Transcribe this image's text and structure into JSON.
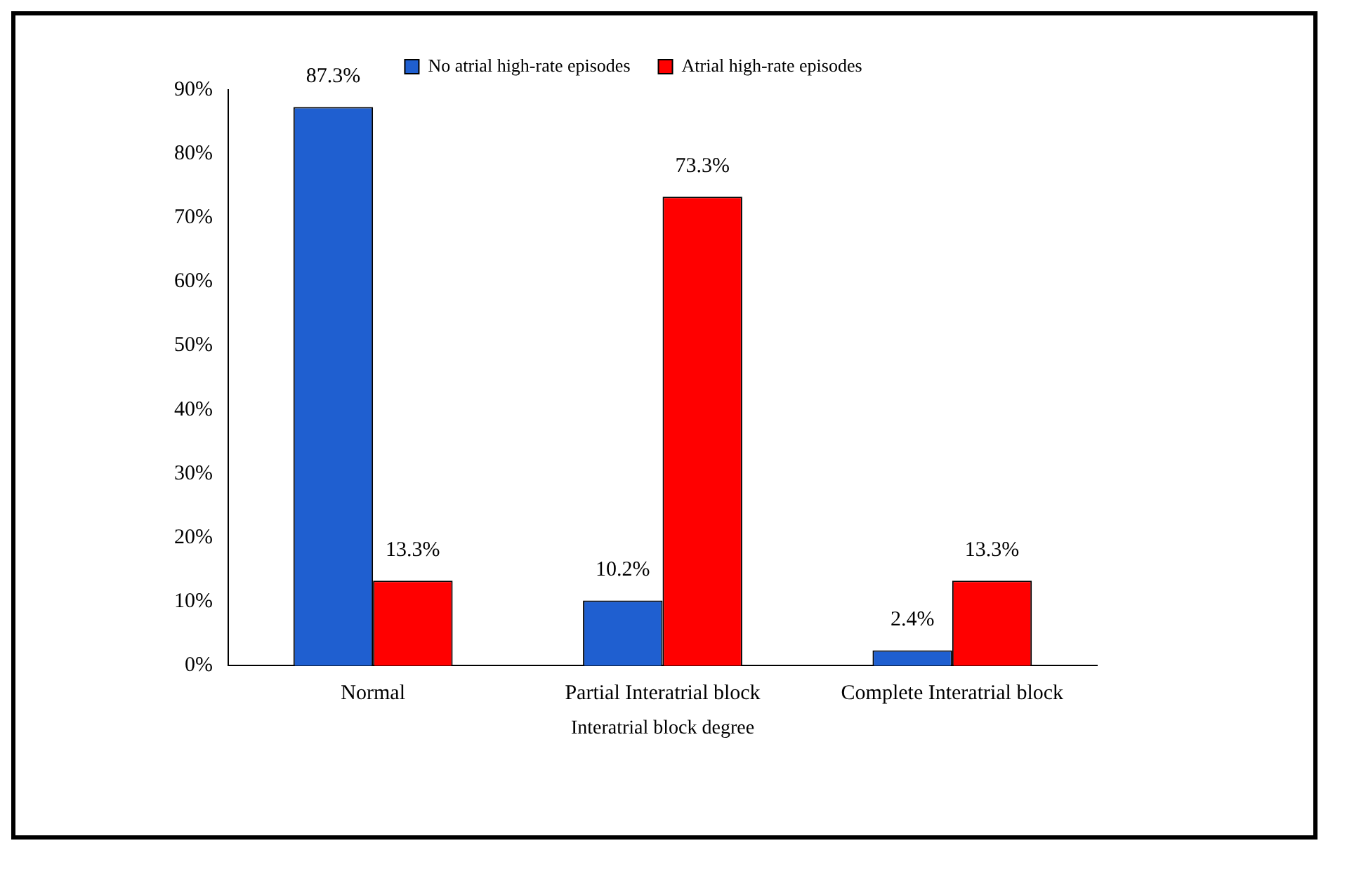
{
  "chart_data": {
    "type": "bar",
    "xlabel": "Interatrial block degree",
    "categories": [
      "Normal",
      "Partial Interatrial block",
      "Complete Interatrial block"
    ],
    "series": [
      {
        "name": "No atrial high-rate episodes",
        "color": "#1f5fd0",
        "values": [
          87.3,
          10.2,
          2.4
        ],
        "value_labels": [
          "87.3%",
          "10.2%",
          "2.4%"
        ]
      },
      {
        "name": "Atrial high-rate episodes",
        "color": "#ff0000",
        "values": [
          13.3,
          73.3,
          13.3
        ],
        "value_labels": [
          "13.3%",
          "73.3%",
          "13.3%"
        ]
      }
    ],
    "ylim": [
      0,
      90
    ],
    "yticks": [
      {
        "value": 0,
        "label": "0%"
      },
      {
        "value": 10,
        "label": "10%"
      },
      {
        "value": 20,
        "label": "20%"
      },
      {
        "value": 30,
        "label": "30%"
      },
      {
        "value": 40,
        "label": "40%"
      },
      {
        "value": 50,
        "label": "50%"
      },
      {
        "value": 60,
        "label": "60%"
      },
      {
        "value": 70,
        "label": "70%"
      },
      {
        "value": 80,
        "label": "80%"
      },
      {
        "value": 90,
        "label": "90%"
      }
    ],
    "grid": false,
    "legend": "top"
  }
}
